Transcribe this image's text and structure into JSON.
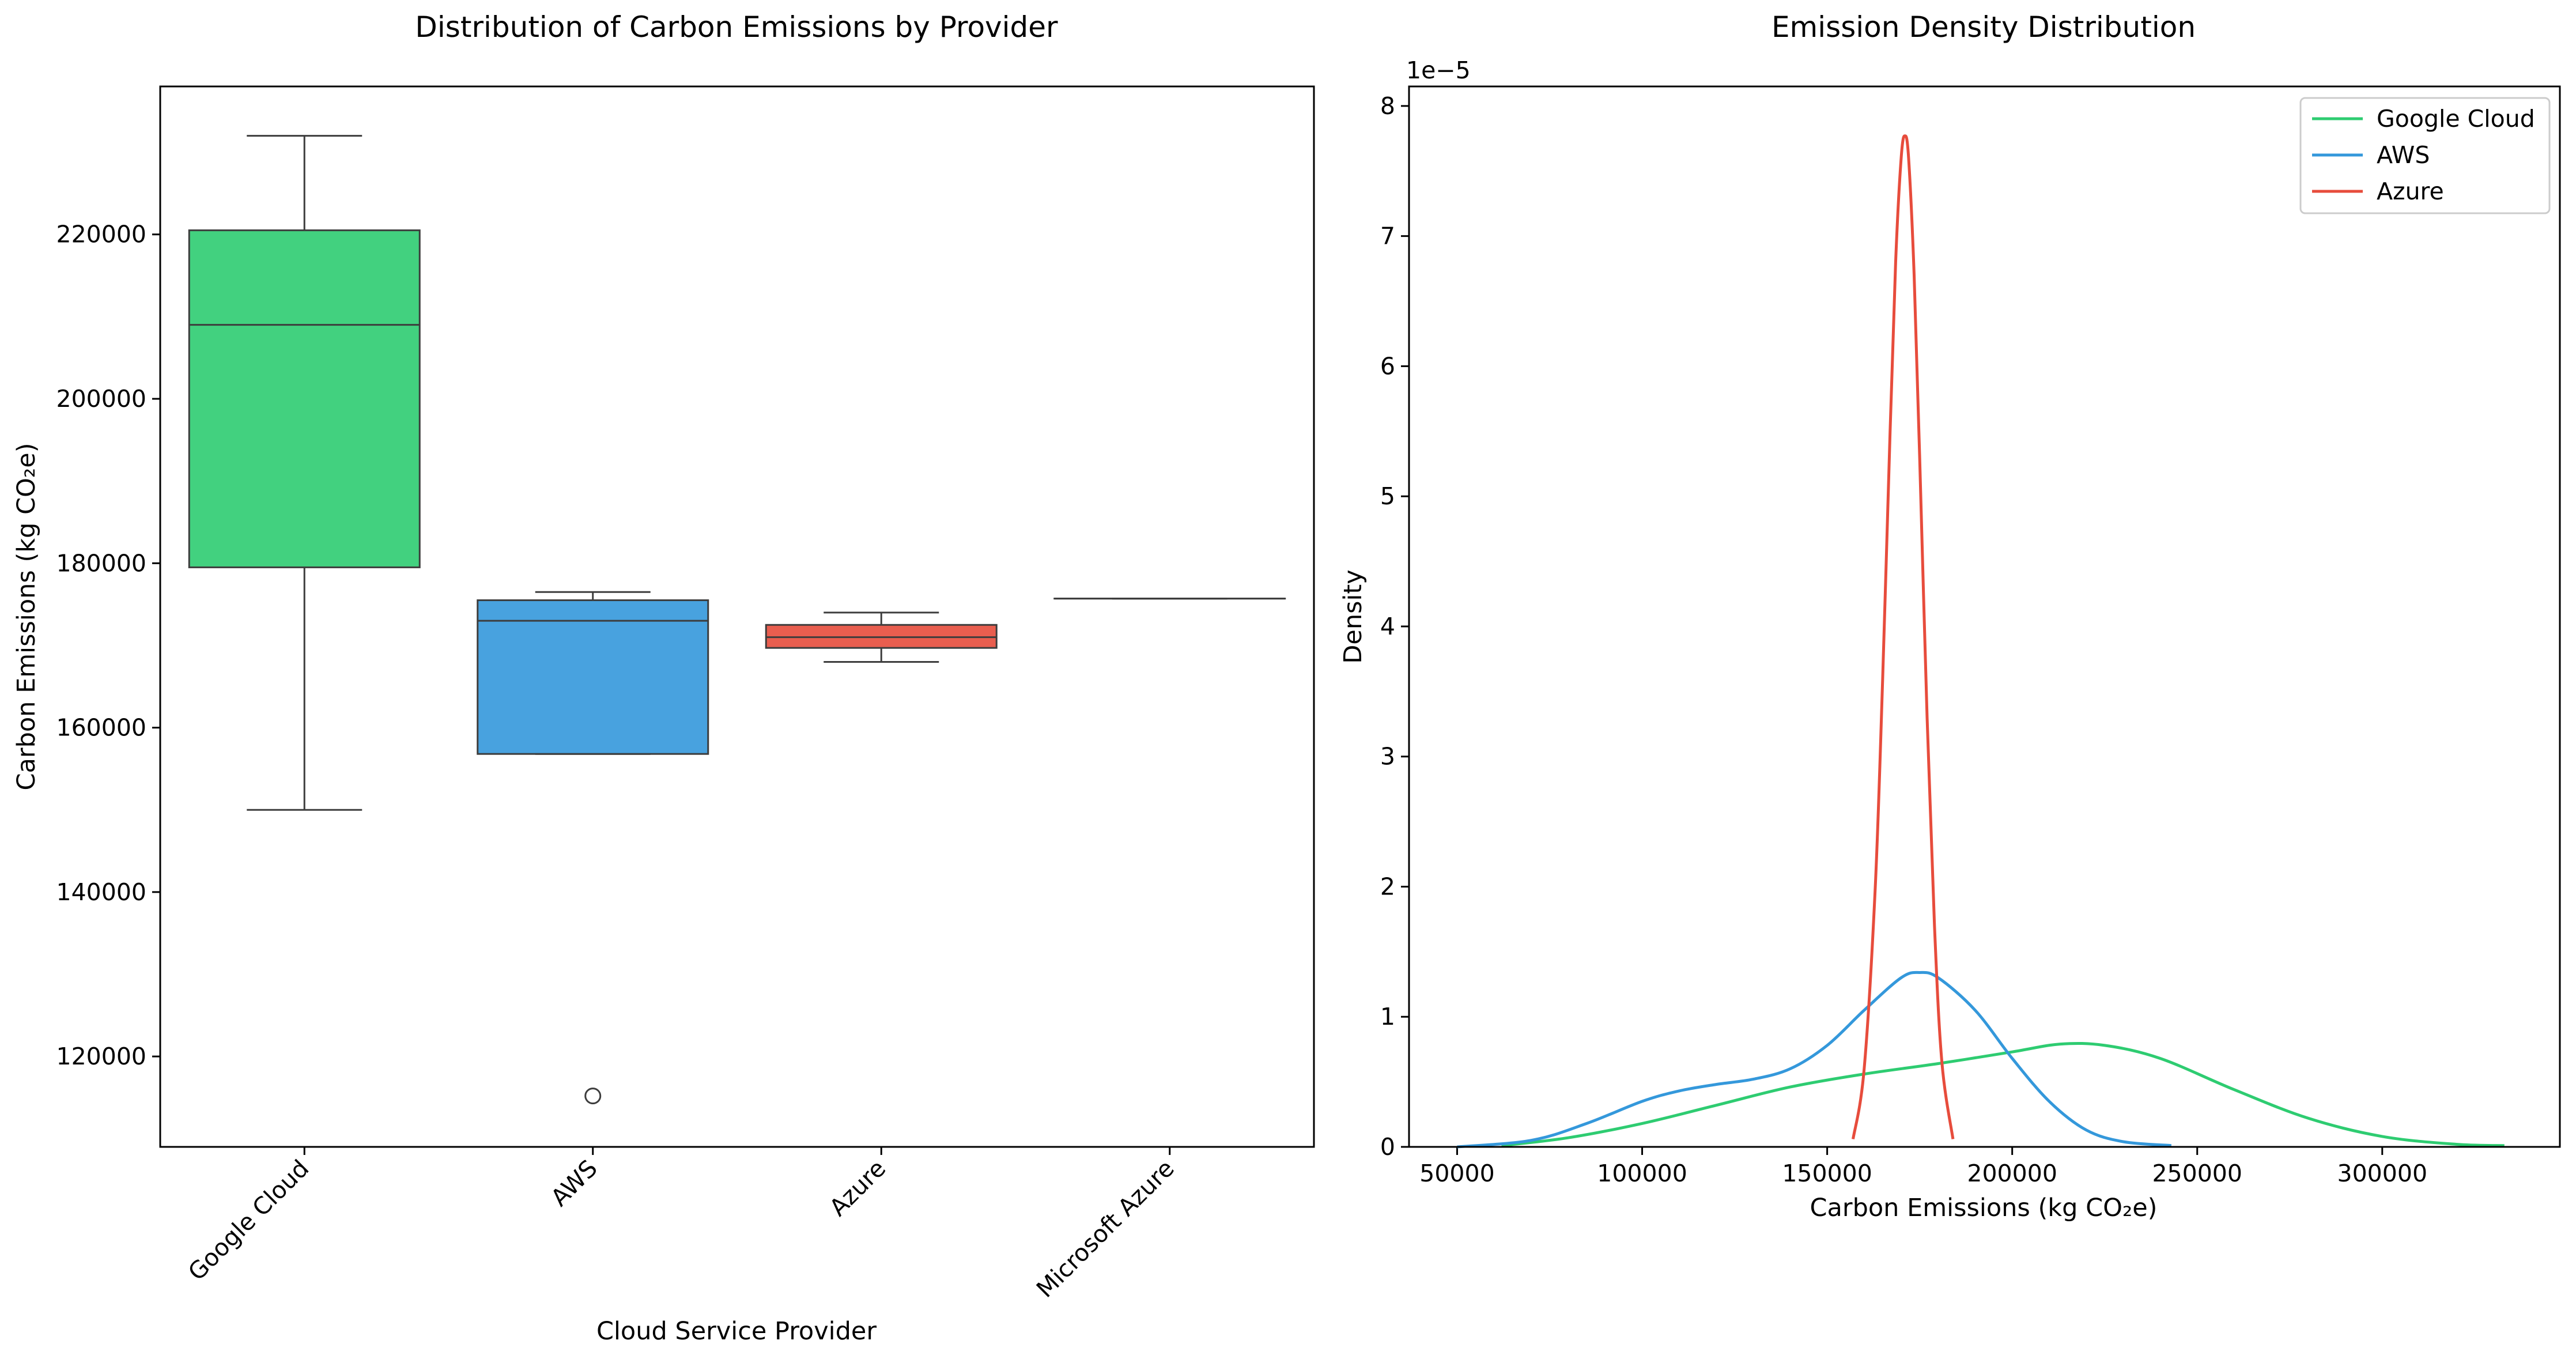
{
  "chart_data": [
    {
      "type": "box",
      "title": "Distribution of Carbon Emissions by Provider",
      "xlabel": "Cloud Service Provider",
      "ylabel": "Carbon Emissions (kg CO₂e)",
      "ylim": [
        109000,
        238000
      ],
      "yticks": [
        120000,
        140000,
        160000,
        180000,
        200000,
        220000
      ],
      "ytick_labels": [
        "120000",
        "140000",
        "160000",
        "180000",
        "200000",
        "220000"
      ],
      "categories": [
        "Google Cloud",
        "AWS",
        "Azure",
        "Microsoft Azure"
      ],
      "boxes": [
        {
          "category": "Google Cloud",
          "color": "#2ecc71",
          "whisker_low": 150000,
          "q1": 179500,
          "median": 209000,
          "q3": 220500,
          "whisker_high": 232000,
          "outliers": []
        },
        {
          "category": "AWS",
          "color": "#3498db",
          "whisker_low": 156800,
          "q1": 156800,
          "median": 173000,
          "q3": 175500,
          "whisker_high": 176500,
          "outliers": [
            115200
          ]
        },
        {
          "category": "Azure",
          "color": "#e74c3c",
          "whisker_low": 168000,
          "q1": 169700,
          "median": 171000,
          "q3": 172500,
          "whisker_high": 174000,
          "outliers": []
        },
        {
          "category": "Microsoft Azure",
          "color": "#7f8c8d",
          "whisker_low": 175700,
          "q1": 175700,
          "median": 175700,
          "q3": 175700,
          "whisker_high": 175700,
          "outliers": []
        }
      ]
    },
    {
      "type": "line",
      "title": "Emission Density Distribution",
      "xlabel": "Carbon Emissions (kg CO₂e)",
      "ylabel": "Density",
      "y_scale_label": "1e−5",
      "xlim": [
        37000,
        348000
      ],
      "ylim": [
        0,
        8.15
      ],
      "xticks": [
        50000,
        100000,
        150000,
        200000,
        250000,
        300000
      ],
      "xtick_labels": [
        "50000",
        "100000",
        "150000",
        "200000",
        "250000",
        "300000"
      ],
      "yticks": [
        0,
        1,
        2,
        3,
        4,
        5,
        6,
        7,
        8
      ],
      "ytick_labels": [
        "0",
        "1",
        "2",
        "3",
        "4",
        "5",
        "6",
        "7",
        "8"
      ],
      "legend_position": "top-right",
      "series": [
        {
          "name": "Google Cloud",
          "color": "#2ecc71",
          "x": [
            62000,
            80000,
            100000,
            120000,
            140000,
            160000,
            180000,
            200000,
            213000,
            225000,
            240000,
            260000,
            280000,
            300000,
            320000,
            333000
          ],
          "y": [
            0.01,
            0.07,
            0.18,
            0.32,
            0.46,
            0.56,
            0.64,
            0.73,
            0.79,
            0.78,
            0.68,
            0.44,
            0.22,
            0.08,
            0.02,
            0.01
          ]
        },
        {
          "name": "AWS",
          "color": "#3498db",
          "x": [
            50000,
            70000,
            85000,
            100000,
            110000,
            120000,
            130000,
            140000,
            150000,
            160000,
            170000,
            175000,
            180000,
            190000,
            200000,
            210000,
            220000,
            230000,
            243000
          ],
          "y": [
            0.0,
            0.05,
            0.18,
            0.35,
            0.43,
            0.48,
            0.52,
            0.6,
            0.78,
            1.05,
            1.3,
            1.34,
            1.3,
            1.05,
            0.68,
            0.35,
            0.13,
            0.04,
            0.01
          ]
        },
        {
          "name": "Azure",
          "color": "#e74c3c",
          "x": [
            157000,
            160000,
            163000,
            165000,
            167000,
            168500,
            170000,
            171000,
            172000,
            173500,
            175000,
            177000,
            179000,
            181000,
            184000
          ],
          "y": [
            0.06,
            0.6,
            2.0,
            3.6,
            5.5,
            6.8,
            7.6,
            7.77,
            7.6,
            6.7,
            5.3,
            3.3,
            1.7,
            0.65,
            0.06
          ]
        }
      ]
    }
  ]
}
